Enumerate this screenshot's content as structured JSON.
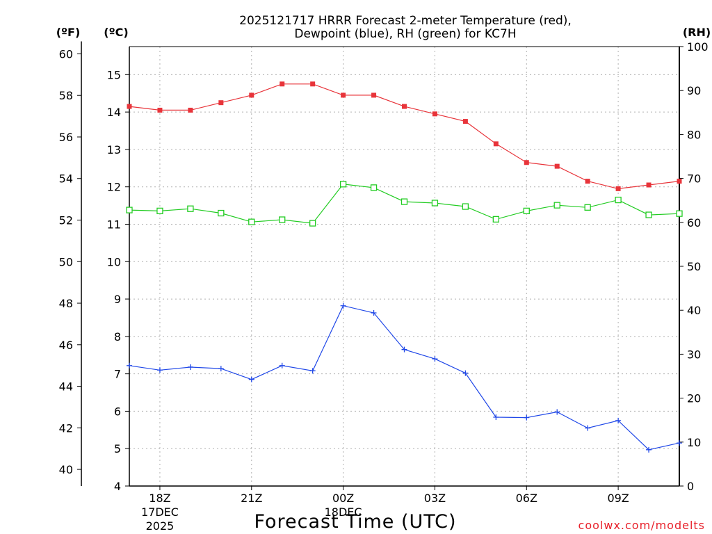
{
  "chart_data": {
    "type": "line",
    "title_line1": "2025121717 HRRR Forecast 2-meter Temperature (red),",
    "title_line2": "Dewpoint (blue), RH (green) for KC7H",
    "xlabel": "Forecast Time (UTC)",
    "credit": "coolwx.com/modelts",
    "units": {
      "fahrenheit": "(ºF)",
      "celsius": "(ºC)",
      "rh": "(RH)"
    },
    "x_ticks": [
      {
        "h": 1,
        "label": "18Z",
        "sub1": "17DEC",
        "sub2": "2025"
      },
      {
        "h": 4,
        "label": "21Z",
        "sub1": "",
        "sub2": ""
      },
      {
        "h": 7,
        "label": "00Z",
        "sub1": "18DEC",
        "sub2": ""
      },
      {
        "h": 10,
        "label": "03Z",
        "sub1": "",
        "sub2": ""
      },
      {
        "h": 13,
        "label": "06Z",
        "sub1": "",
        "sub2": ""
      },
      {
        "h": 16,
        "label": "09Z",
        "sub1": "",
        "sub2": ""
      }
    ],
    "xlim": [
      0,
      18
    ],
    "c_ticks": [
      "4",
      "5",
      "6",
      "7",
      "8",
      "9",
      "10",
      "11",
      "12",
      "13",
      "14",
      "15"
    ],
    "c_lim": [
      4,
      15.75
    ],
    "f_ticks": [
      "40",
      "42",
      "44",
      "46",
      "48",
      "50",
      "52",
      "54",
      "56",
      "58",
      "60"
    ],
    "rh_ticks": [
      "0",
      "10",
      "20",
      "30",
      "40",
      "50",
      "60",
      "70",
      "80",
      "90",
      "100"
    ],
    "rh_lim": [
      0,
      100
    ],
    "series": [
      {
        "name": "Temperature",
        "unit": "C",
        "color": "#e8343a",
        "marker": "filled-square",
        "x": [
          0,
          1,
          2,
          3,
          4,
          5,
          6,
          7,
          8,
          9,
          10,
          11,
          12,
          13,
          14,
          15,
          16,
          17,
          18
        ],
        "values": [
          14.15,
          14.05,
          14.05,
          14.25,
          14.45,
          14.75,
          14.75,
          14.45,
          14.45,
          14.15,
          13.95,
          13.75,
          13.15,
          12.65,
          12.55,
          12.15,
          11.95,
          12.05,
          12.15
        ]
      },
      {
        "name": "Dewpoint",
        "unit": "C",
        "color": "#2048e8",
        "marker": "plus",
        "x": [
          0,
          1,
          2,
          3,
          4,
          5,
          6,
          7,
          8,
          9,
          10,
          11,
          12,
          13,
          14,
          15,
          16,
          17,
          18
        ],
        "values": [
          7.22,
          7.1,
          7.18,
          7.14,
          6.85,
          7.22,
          7.08,
          8.82,
          8.63,
          7.65,
          7.4,
          7.02,
          5.84,
          5.83,
          5.98,
          5.55,
          5.75,
          4.97,
          5.15
        ]
      },
      {
        "name": "RH",
        "unit": "%",
        "color": "#22cc22",
        "marker": "open-square",
        "x": [
          0,
          1,
          2,
          3,
          4,
          5,
          6,
          7,
          8,
          9,
          10,
          11,
          12,
          13,
          14,
          15,
          16,
          17,
          18
        ],
        "values": [
          62.8,
          62.6,
          63.1,
          62.1,
          60.1,
          60.6,
          59.8,
          68.7,
          67.9,
          64.7,
          64.4,
          63.6,
          60.7,
          62.6,
          63.9,
          63.4,
          65.1,
          61.7,
          62.0
        ]
      }
    ]
  }
}
